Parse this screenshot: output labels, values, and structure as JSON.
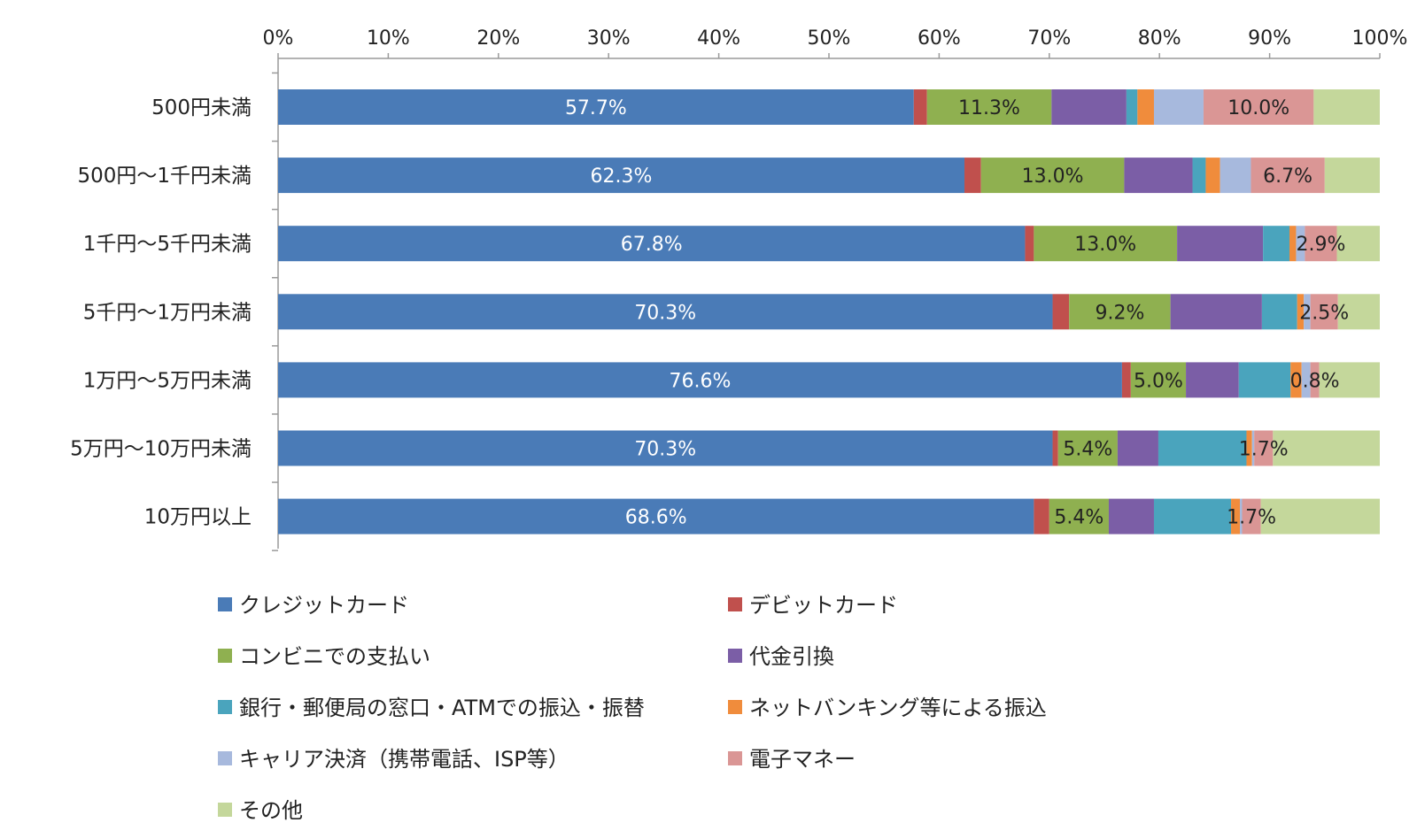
{
  "chart_data": {
    "type": "bar",
    "orientation": "horizontal",
    "stacked": true,
    "percent_stacked": true,
    "xlim": [
      0,
      100
    ],
    "x_ticks": [
      "0%",
      "10%",
      "20%",
      "30%",
      "40%",
      "50%",
      "60%",
      "70%",
      "80%",
      "90%",
      "100%"
    ],
    "categories": [
      "500円未満",
      "500円～1千円未満",
      "1千円～5千円未満",
      "5千円～1万円未満",
      "1万円～5万円未満",
      "5万円～10万円未満",
      "10万円以上"
    ],
    "series": [
      {
        "name": "クレジットカード",
        "color": "#4a7bb7",
        "values": [
          57.7,
          62.3,
          67.8,
          70.3,
          76.6,
          70.3,
          68.6
        ],
        "labels": [
          "57.7%",
          "62.3%",
          "67.8%",
          "70.3%",
          "76.6%",
          "70.3%",
          "68.6%"
        ],
        "label_color": "#ffffff"
      },
      {
        "name": "デビットカード",
        "color": "#c0504d",
        "values": [
          1.2,
          1.5,
          0.8,
          1.5,
          0.8,
          0.5,
          1.4
        ],
        "labels": [
          "",
          "",
          "",
          "",
          "",
          "",
          ""
        ],
        "label_color": "#222222"
      },
      {
        "name": "コンビニでの支払い",
        "color": "#8fb050",
        "values": [
          11.3,
          13.0,
          13.0,
          9.2,
          5.0,
          5.4,
          5.4
        ],
        "labels": [
          "11.3%",
          "13.0%",
          "13.0%",
          "9.2%",
          "5.0%",
          "5.4%",
          "5.4%"
        ],
        "label_color": "#222222"
      },
      {
        "name": "代金引換",
        "color": "#7b5ea6",
        "values": [
          6.8,
          6.2,
          7.8,
          8.3,
          4.8,
          3.7,
          4.1
        ],
        "labels": [
          "",
          "",
          "",
          "",
          "",
          "",
          ""
        ],
        "label_color": "#222222"
      },
      {
        "name": "銀行・郵便局の窓口・ATMでの振込・振替",
        "color": "#4aa4bd",
        "values": [
          1.0,
          1.2,
          2.4,
          3.2,
          4.7,
          8.0,
          7.0
        ],
        "labels": [
          "",
          "",
          "",
          "",
          "",
          "",
          ""
        ],
        "label_color": "#222222"
      },
      {
        "name": "ネットバンキング等による振込",
        "color": "#f08c3c",
        "values": [
          1.5,
          1.3,
          0.6,
          0.6,
          1.0,
          0.5,
          0.8
        ],
        "labels": [
          "",
          "",
          "",
          "",
          "",
          "",
          ""
        ],
        "label_color": "#222222"
      },
      {
        "name": "キャリア決済（携帯電話、ISP等）",
        "color": "#a7b9dd",
        "values": [
          4.5,
          2.8,
          0.8,
          0.6,
          0.8,
          0.2,
          0.2
        ],
        "labels": [
          "",
          "",
          "",
          "",
          "",
          "",
          ""
        ],
        "label_color": "#222222"
      },
      {
        "name": "電子マネー",
        "color": "#da9695",
        "values": [
          10.0,
          6.7,
          2.9,
          2.5,
          0.8,
          1.7,
          1.7
        ],
        "labels": [
          "10.0%",
          "6.7%",
          "2.9%",
          "2.5%",
          "0.8%",
          "1.7%",
          "1.7%"
        ],
        "label_color": "#222222"
      },
      {
        "name": "その他",
        "color": "#c4d79b",
        "values": [
          6.0,
          5.0,
          3.9,
          3.8,
          5.5,
          9.7,
          10.8
        ],
        "labels": [
          "",
          "",
          "",
          "",
          "",
          "",
          ""
        ],
        "label_color": "#222222"
      }
    ],
    "legend_position": "bottom",
    "grid": false
  }
}
